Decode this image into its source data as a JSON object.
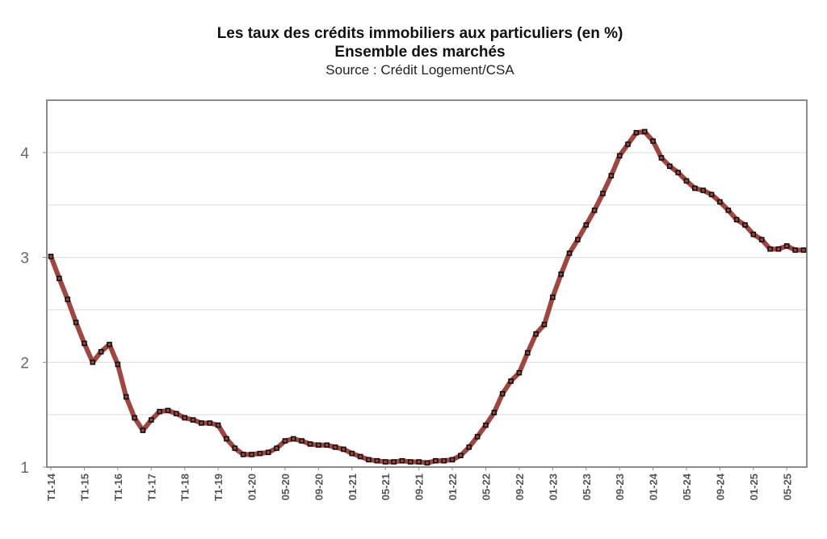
{
  "chart_data": {
    "type": "line",
    "title": "Les taux des crédits immobiliers aux particuliers (en %)",
    "subtitle": "Ensemble des marchés",
    "source": "Source : Crédit Logement/CSA",
    "xlabel": "",
    "ylabel": "",
    "ylim": [
      1,
      4.5
    ],
    "yticks": [
      1,
      2,
      3,
      4
    ],
    "grid": true,
    "legend": "none",
    "line_color": "#a0463f",
    "marker_color": "#111111",
    "x_tick_labels": [
      "T1-14",
      "T1-15",
      "T1-16",
      "T1-17",
      "T1-18",
      "T1-19",
      "01-20",
      "05-20",
      "09-20",
      "01-21",
      "05-21",
      "09-21",
      "01-22",
      "05-22",
      "09-22",
      "01-23",
      "05-23",
      "09-23",
      "01-24",
      "05-24",
      "09-24",
      "01-25",
      "05-25"
    ],
    "series": [
      {
        "values": [
          3.01,
          2.8,
          2.6,
          2.38,
          2.18,
          2.0,
          2.1,
          2.17,
          1.98,
          1.67,
          1.47,
          1.35,
          1.45,
          1.53,
          1.54,
          1.51,
          1.47,
          1.45,
          1.42,
          1.42,
          1.4,
          1.27,
          1.18,
          1.12,
          1.12,
          1.13,
          1.14,
          1.18,
          1.25,
          1.27,
          1.25,
          1.22,
          1.21,
          1.21,
          1.19,
          1.17,
          1.13,
          1.1,
          1.07,
          1.06,
          1.05,
          1.05,
          1.06,
          1.05,
          1.05,
          1.04,
          1.06,
          1.06,
          1.07,
          1.11,
          1.19,
          1.29,
          1.4,
          1.52,
          1.7,
          1.82,
          1.9,
          2.09,
          2.27,
          2.36,
          2.62,
          2.84,
          3.04,
          3.17,
          3.31,
          3.45,
          3.61,
          3.78,
          3.97,
          4.08,
          4.19,
          4.2,
          4.11,
          3.95,
          3.87,
          3.81,
          3.73,
          3.66,
          3.64,
          3.6,
          3.53,
          3.45,
          3.36,
          3.31,
          3.22,
          3.17,
          3.08,
          3.08,
          3.11,
          3.07,
          3.07
        ]
      }
    ]
  }
}
